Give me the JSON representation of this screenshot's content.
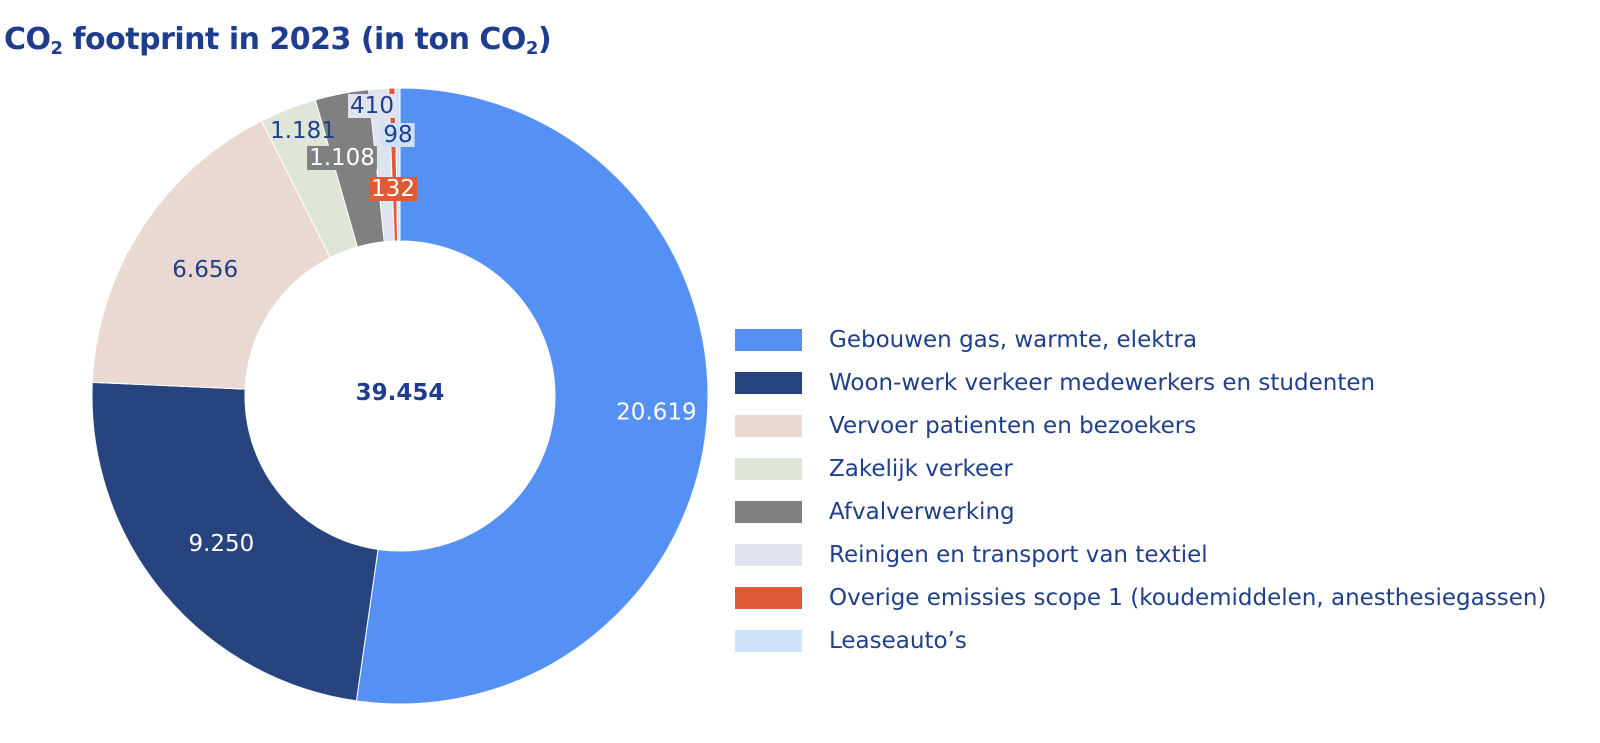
{
  "title": {
    "prefix": "CO",
    "sub1": "2",
    "middle": " footprint in 2023 (in ton CO",
    "sub2": "2",
    "suffix": ")"
  },
  "chart_data": {
    "type": "pie",
    "title": "CO2 footprint in 2023 (in ton CO2)",
    "total_label": "39.454",
    "total": 39454,
    "legend_position": "right",
    "slices": [
      {
        "label": "Gebouwen gas, warmte, elektra",
        "value": 20619,
        "display": "20.619",
        "color": "#5591f5",
        "label_color": "#ffffff"
      },
      {
        "label": "Woon-werk verkeer medewerkers en studenten",
        "value": 9250,
        "display": "9.250",
        "color": "#27447f",
        "label_color": "#ffffff"
      },
      {
        "label": "Vervoer patienten en bezoekers",
        "value": 6656,
        "display": "6.656",
        "color": "#ead9d2",
        "label_color": "#1f3f8a"
      },
      {
        "label": "Zakelijk verkeer",
        "value": 1181,
        "display": "1.181",
        "color": "#dfe6d8",
        "label_color": "#1f3f8a"
      },
      {
        "label": "Afvalverwerking",
        "value": 1108,
        "display": "1.108",
        "color": "#808080",
        "label_color": "#ffffff"
      },
      {
        "label": "Reinigen en transport van textiel",
        "value": 410,
        "display": "410",
        "color": "#dee3ee",
        "label_color": "#1f3f8a"
      },
      {
        "label": "Overige emissies scope 1 (koudemiddelen, anesthesiegassen)",
        "value": 132,
        "display": "132",
        "color": "#e05a35",
        "label_color": "#ffffff"
      },
      {
        "label": "Leaseauto’s",
        "value": 98,
        "display": "98",
        "color": "#cfe2fb",
        "label_color": "#1f3f8a"
      }
    ]
  }
}
